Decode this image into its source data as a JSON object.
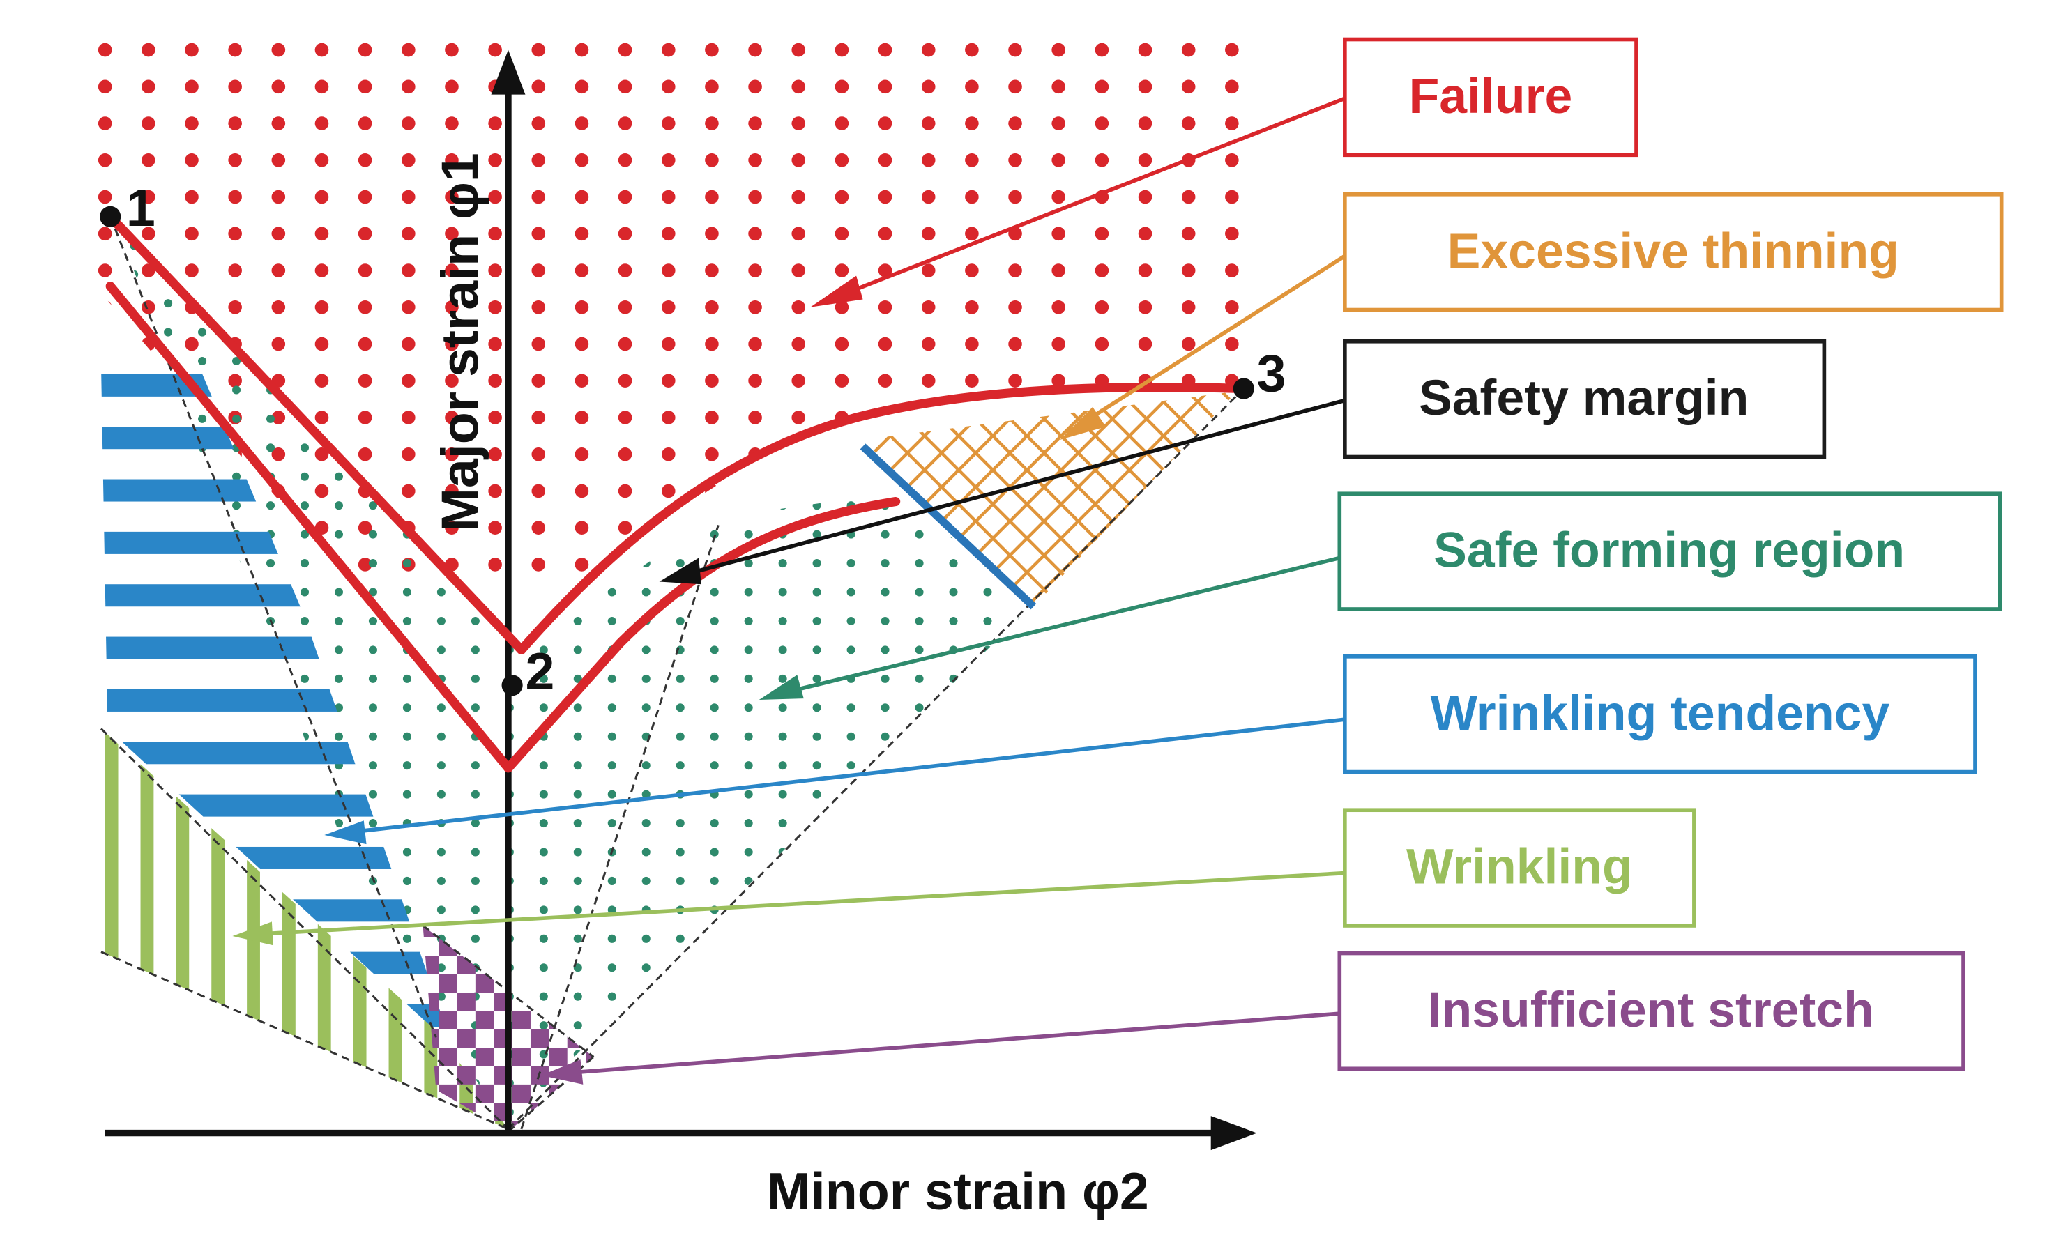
{
  "diagram": {
    "type": "forming-limit-diagram",
    "axes": {
      "y_label": "Major strain φ1",
      "x_label": "Minor strain φ2"
    },
    "points": [
      {
        "label": "1"
      },
      {
        "label": "2"
      },
      {
        "label": "3"
      }
    ],
    "legend": [
      {
        "key": "failure",
        "label": "Failure",
        "color": "#d9262b"
      },
      {
        "key": "thinning",
        "label": "Excessive thinning",
        "color": "#e0953a"
      },
      {
        "key": "margin",
        "label": "Safety margin",
        "color": "#1c1c1c"
      },
      {
        "key": "safe",
        "label": "Safe forming region",
        "color": "#2e8a6c"
      },
      {
        "key": "tendency",
        "label": "Wrinkling tendency",
        "color": "#2a86c8"
      },
      {
        "key": "wrinkling",
        "label": "Wrinkling",
        "color": "#9bbf5c"
      },
      {
        "key": "stretch",
        "label": "Insufficient stretch",
        "color": "#8a4c8c"
      }
    ]
  }
}
